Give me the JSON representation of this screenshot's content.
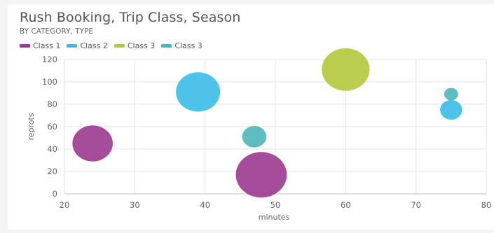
{
  "chart_data": {
    "type": "bubble",
    "title": "Rush Booking, Trip Class, Season",
    "subtitle": "BY CATEGORY, TYPE",
    "xlabel": "minutes",
    "ylabel": "reprots",
    "xlim": [
      20,
      80
    ],
    "ylim": [
      0,
      120
    ],
    "xticks": [
      20,
      30,
      40,
      50,
      60,
      70,
      80
    ],
    "yticks": [
      0,
      20,
      40,
      60,
      80,
      100,
      120
    ],
    "grid": true,
    "legend_position": "top-left",
    "series": [
      {
        "name": "Class 1",
        "color": "#9b3a8f",
        "points": [
          {
            "x": 24,
            "y": 45,
            "size": 5
          },
          {
            "x": 48,
            "y": 17,
            "size": 8
          }
        ]
      },
      {
        "name": "Class 2",
        "color": "#3bbde8",
        "points": [
          {
            "x": 39,
            "y": 91,
            "size": 6
          },
          {
            "x": 75,
            "y": 75,
            "size": 1.5
          }
        ]
      },
      {
        "name": "Class 3",
        "color": "#b4c83c",
        "points": [
          {
            "x": 60,
            "y": 111,
            "size": 7
          }
        ]
      },
      {
        "name": "Class 3",
        "color": "#4cb6b8",
        "points": [
          {
            "x": 47,
            "y": 51,
            "size": 1.8
          },
          {
            "x": 75,
            "y": 89,
            "size": 0.6
          }
        ]
      }
    ]
  }
}
